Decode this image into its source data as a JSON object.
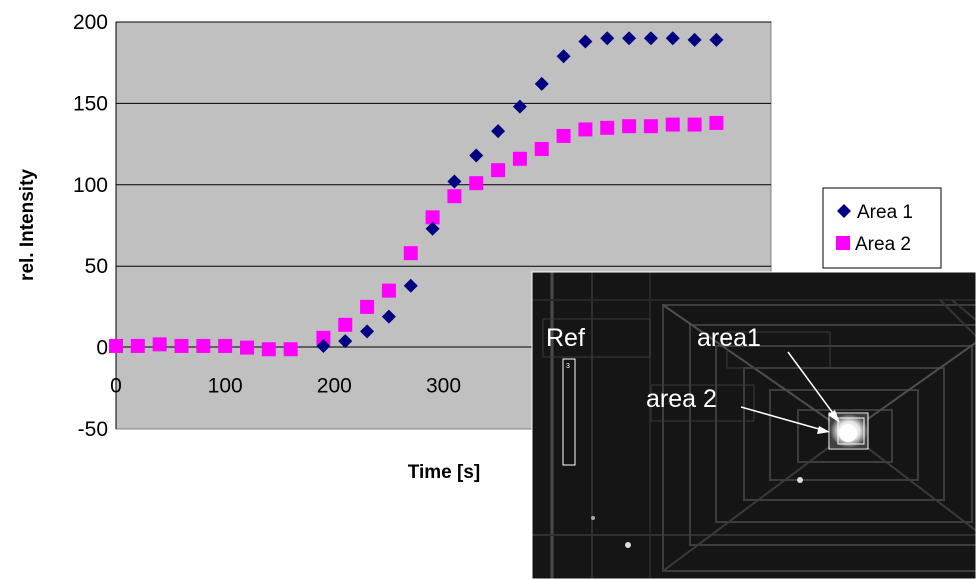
{
  "colors": {
    "plot_background": "#c0c0c0",
    "gridline": "#000000",
    "area1": "#000080",
    "area2": "#ff00ff",
    "inset_background": "#151515"
  },
  "chart_data": {
    "type": "scatter",
    "title": "",
    "xlabel": "Time [s]",
    "ylabel": "rel. Intensity",
    "xlim": [
      0,
      600
    ],
    "ylim": [
      -50,
      200
    ],
    "x_ticks": [
      "0",
      "100",
      "200",
      "300"
    ],
    "y_ticks": [
      "-50",
      "0",
      "50",
      "100",
      "150",
      "200"
    ],
    "grid": "horizontal",
    "legend_position": "right",
    "series": [
      {
        "name": "Area 1",
        "marker": "diamond",
        "points": [
          [
            190,
            1
          ],
          [
            210,
            4
          ],
          [
            230,
            10
          ],
          [
            250,
            19
          ],
          [
            270,
            38
          ],
          [
            290,
            73
          ],
          [
            310,
            102
          ],
          [
            330,
            118
          ],
          [
            350,
            133
          ],
          [
            370,
            148
          ],
          [
            390,
            162
          ],
          [
            410,
            179
          ],
          [
            430,
            188
          ],
          [
            450,
            190
          ],
          [
            470,
            190
          ],
          [
            490,
            190
          ],
          [
            510,
            190
          ],
          [
            530,
            189
          ],
          [
            550,
            189
          ]
        ]
      },
      {
        "name": "Area 2",
        "marker": "square",
        "points": [
          [
            0,
            1
          ],
          [
            20,
            1
          ],
          [
            40,
            2
          ],
          [
            60,
            1
          ],
          [
            80,
            1
          ],
          [
            100,
            1
          ],
          [
            120,
            0
          ],
          [
            140,
            -1
          ],
          [
            160,
            -1
          ],
          [
            190,
            6
          ],
          [
            210,
            14
          ],
          [
            230,
            25
          ],
          [
            250,
            35
          ],
          [
            270,
            58
          ],
          [
            290,
            80
          ],
          [
            310,
            93
          ],
          [
            330,
            101
          ],
          [
            350,
            109
          ],
          [
            370,
            116
          ],
          [
            390,
            122
          ],
          [
            410,
            130
          ],
          [
            430,
            134
          ],
          [
            450,
            135
          ],
          [
            470,
            136
          ],
          [
            490,
            136
          ],
          [
            510,
            137
          ],
          [
            530,
            137
          ],
          [
            550,
            138
          ]
        ]
      }
    ]
  },
  "inset": {
    "labels": {
      "ref": "Ref",
      "area1": "area1",
      "area2": "area 2",
      "ref_box_id": "3"
    }
  }
}
